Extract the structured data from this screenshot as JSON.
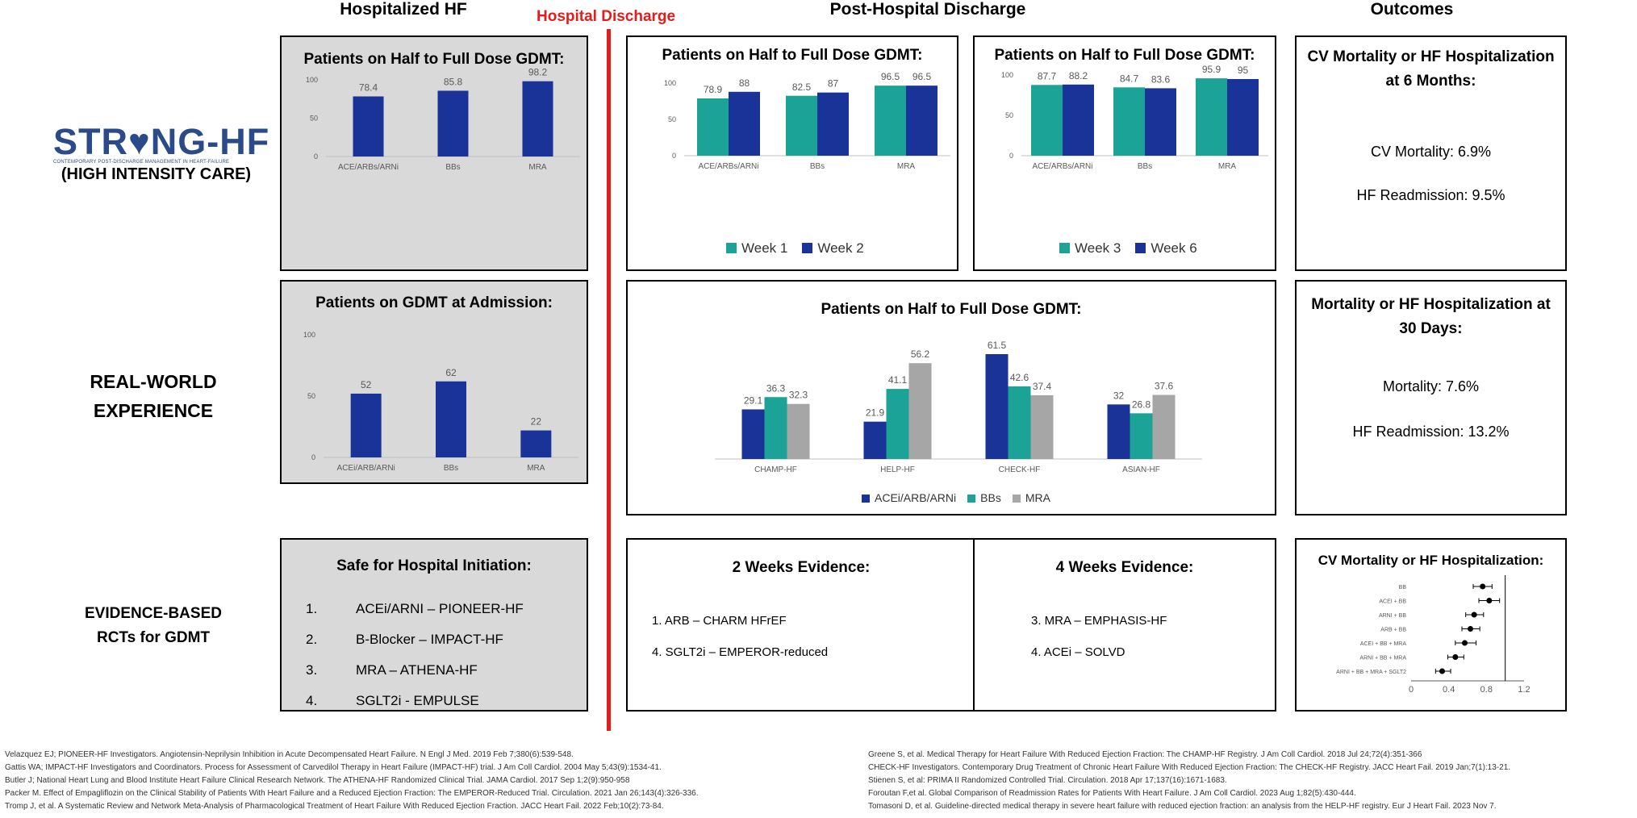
{
  "headers": {
    "hospitalized": "Hospitalized HF",
    "discharge": "Hospital Discharge",
    "post": "Post-Hospital Discharge",
    "outcomes": "Outcomes"
  },
  "rows": {
    "strong_hf_logo": "STR♥NG-HF",
    "strong_hf_tagline": "CONTEMPORARY POST-DISCHARGE MANAGEMENT IN HEART-FAILURE",
    "strong_hf_sub": "(HIGH INTENSITY CARE)",
    "realworld_line1": "REAL-WORLD",
    "realworld_line2": "EXPERIENCE",
    "evidence_line1": "EVIDENCE-BASED",
    "evidence_line2": "RCTs for GDMT"
  },
  "colors": {
    "navy": "#1a3399",
    "teal": "#1aa396",
    "gray": "#a6a6a6",
    "red": "#e31c1c"
  },
  "panels": {
    "strong_inhosp": {
      "title": "Patients on Half to Full Dose GDMT:",
      "chart_data": {
        "type": "bar",
        "categories": [
          "ACE/ARBs/ARNi",
          "BBs",
          "MRA"
        ],
        "series": [
          {
            "values": [
              78.4,
              85.8,
              98.2
            ]
          }
        ],
        "ylim": [
          0,
          100
        ],
        "yticks": [
          "0",
          "50",
          "100"
        ]
      }
    },
    "strong_early": {
      "title": "Patients on Half to Full Dose GDMT:",
      "legend": [
        "Week 1",
        "Week 2"
      ],
      "chart_data": {
        "type": "bar",
        "categories": [
          "ACE/ARBs/ARNi",
          "BBs",
          "MRA"
        ],
        "series": [
          {
            "name": "Week 1",
            "values": [
              78.9,
              82.5,
              96.5
            ]
          },
          {
            "name": "Week 2",
            "values": [
              88,
              87,
              96.5
            ]
          }
        ],
        "ylim": [
          0,
          100
        ],
        "yticks": [
          "0",
          "50",
          "100"
        ]
      }
    },
    "strong_late": {
      "title": "Patients on Half to Full Dose GDMT:",
      "legend": [
        "Week 3",
        "Week 6"
      ],
      "chart_data": {
        "type": "bar",
        "categories": [
          "ACE/ARBs/ARNi",
          "BBs",
          "MRA"
        ],
        "series": [
          {
            "name": "Week 3",
            "values": [
              87.7,
              84.7,
              95.9
            ]
          },
          {
            "name": "Week 6",
            "values": [
              88.2,
              83.6,
              95
            ]
          }
        ],
        "ylim": [
          0,
          100
        ],
        "yticks": [
          "0",
          "50",
          "100"
        ]
      }
    },
    "strong_outcome": {
      "title": "CV Mortality or HF Hospitalization at 6 Months:",
      "line1": "CV Mortality: 6.9%",
      "line2": "HF Readmission: 9.5%"
    },
    "rw_admission": {
      "title": "Patients on GDMT at Admission:",
      "chart_data": {
        "type": "bar",
        "categories": [
          "ACEi/ARB/ARNi",
          "BBs",
          "MRA"
        ],
        "series": [
          {
            "values": [
              52,
              62,
              22
            ]
          }
        ],
        "ylim": [
          0,
          100
        ],
        "yticks": [
          "0",
          "50",
          "100"
        ]
      }
    },
    "rw_registries": {
      "title": "Patients on Half to Full Dose GDMT:",
      "legend": [
        "ACEi/ARB/ARNi",
        "BBs",
        "MRA"
      ],
      "chart_data": {
        "type": "bar",
        "categories": [
          "CHAMP-HF",
          "HELP-HF",
          "CHECK-HF",
          "ASIAN-HF"
        ],
        "series": [
          {
            "name": "ACEi/ARB/ARNi",
            "values": [
              29.1,
              21.9,
              61.5,
              32
            ]
          },
          {
            "name": "BBs",
            "values": [
              36.3,
              41.1,
              42.6,
              26.8
            ]
          },
          {
            "name": "MRA",
            "values": [
              32.3,
              56.2,
              37.4,
              37.6
            ]
          }
        ],
        "ylim": [
          0,
          70
        ]
      }
    },
    "rw_outcome": {
      "title": "Mortality or HF Hospitalization at 30 Days:",
      "line1": "Mortality: 7.6%",
      "line2": "HF Readmission: 13.2%"
    },
    "rct_inhosp": {
      "title": "Safe for Hospital Initiation:",
      "items": [
        {
          "num": "1.",
          "text": "ACEi/ARNI – PIONEER-HF"
        },
        {
          "num": "2.",
          "text": "B-Blocker – IMPACT-HF"
        },
        {
          "num": "3.",
          "text": "MRA – ATHENA-HF"
        },
        {
          "num": "4.",
          "text": "SGLT2i - EMPULSE"
        }
      ]
    },
    "rct_2wk": {
      "title": "2 Weeks Evidence:",
      "items": [
        "1. ARB – CHARM HFrEF",
        "4. SGLT2i – EMPEROR-reduced"
      ]
    },
    "rct_4wk": {
      "title": "4 Weeks Evidence:",
      "items": [
        "3. MRA – EMPHASIS-HF",
        "4. ACEi – SOLVD"
      ]
    },
    "rct_outcome": {
      "title": "CV Mortality or HF Hospitalization:",
      "chart_data": {
        "type": "scatter",
        "categories": [
          "BB",
          "ACEI + BB",
          "ARNI + BB",
          "ARB + BB",
          "ACEI + BB + MRA",
          "ARNI + BB + MRA",
          "ARNI + BB + MRA + SGLT2"
        ],
        "estimate": [
          0.76,
          0.83,
          0.67,
          0.63,
          0.57,
          0.47,
          0.33
        ],
        "ci_low": [
          0.66,
          0.72,
          0.58,
          0.54,
          0.47,
          0.39,
          0.26
        ],
        "ci_high": [
          0.86,
          0.94,
          0.77,
          0.73,
          0.69,
          0.56,
          0.42
        ],
        "xlim": [
          0,
          1.2
        ],
        "xticks": [
          "0",
          "0.4",
          "0.8",
          "1.2"
        ],
        "reference_line": 1.0
      }
    }
  },
  "references_left": [
    "Velazquez EJ; PIONEER-HF Investigators. Angiotensin-Neprilysin Inhibition in Acute Decompensated Heart Failure. N Engl J Med. 2019 Feb 7;380(6):539-548.",
    "Gattis WA; IMPACT-HF Investigators and Coordinators. Process for Assessment of Carvedilol Therapy in Heart Failure (IMPACT-HF) trial. J Am Coll Cardiol. 2004 May 5;43(9):1534-41.",
    "Butler J; National Heart Lung and Blood Institute Heart Failure Clinical Research Network. The ATHENA-HF Randomized Clinical Trial. JAMA Cardiol. 2017 Sep 1;2(9):950-958",
    "Packer M. Effect of Empagliflozin on the Clinical Stability of Patients With Heart Failure and a Reduced Ejection Fraction: The EMPEROR-Reduced Trial. Circulation. 2021 Jan 26;143(4):326-336.",
    "Tromp J, et al. A Systematic Review and Network Meta-Analysis of Pharmacological Treatment of Heart Failure With Reduced Ejection Fraction. JACC Heart Fail. 2022 Feb;10(2):73-84."
  ],
  "references_right": [
    "Greene S, et al. Medical Therapy for Heart Failure With Reduced Ejection Fraction: The CHAMP-HF Registry. J Am Coll Cardiol. 2018 Jul 24;72(4):351-366",
    "CHECK-HF Investigators. Contemporary Drug Treatment of Chronic Heart Failure With Reduced Ejection Fraction: The CHECK-HF Registry. JACC Heart Fail. 2019 Jan;7(1):13-21.",
    "Stienen S, et al: PRIMA II Randomized Controlled Trial. Circulation. 2018 Apr 17;137(16):1671-1683.",
    "Foroutan F,et al. Global Comparison of Readmission Rates for Patients With Heart Failure. J Am Coll Cardiol. 2023 Aug 1;82(5):430-444.",
    "Tomasoni D, et al. Guideline-directed medical therapy in severe heart failure with reduced ejection fraction: an analysis from the HELP-HF registry. Eur J Heart Fail. 2023 Nov 7."
  ]
}
